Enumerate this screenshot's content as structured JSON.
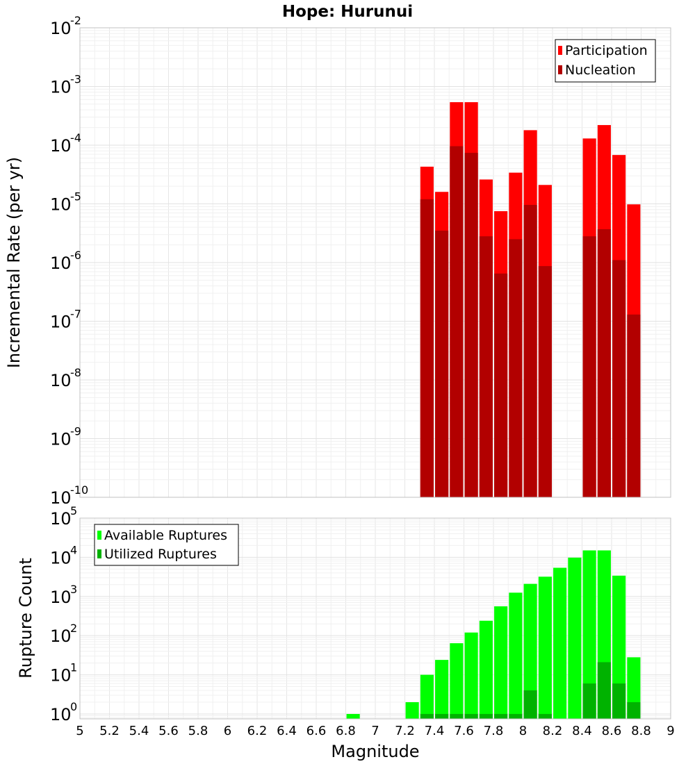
{
  "chart_data": [
    {
      "type": "bar",
      "title": "Hope: Hurunui",
      "ylabel": "Incremental Rate (per yr)",
      "xlabel": "",
      "xlim": [
        5,
        9
      ],
      "ylim": [
        1e-10,
        0.01
      ],
      "yscale": "log",
      "grid": true,
      "legend_position": "top-right",
      "x": [
        7.35,
        7.45,
        7.55,
        7.65,
        7.75,
        7.85,
        7.95,
        8.05,
        8.15,
        8.45,
        8.55,
        8.65,
        8.75
      ],
      "series": [
        {
          "name": "Participation",
          "color": "#ff0000",
          "values": [
            4.3e-05,
            1.6e-05,
            0.00054,
            0.00054,
            2.6e-05,
            7.5e-06,
            3.4e-05,
            0.00018,
            2.1e-05,
            0.00013,
            0.00022,
            6.8e-05,
            9.8e-06
          ]
        },
        {
          "name": "Nucleation",
          "color": "#b20000",
          "values": [
            1.2e-05,
            3.5e-06,
            9.6e-05,
            7.4e-05,
            2.8e-06,
            6.5e-07,
            2.5e-06,
            9.6e-06,
            8.7e-07,
            2.8e-06,
            3.7e-06,
            1.1e-06,
            1.3e-07
          ]
        }
      ],
      "y_ticks": [
        {
          "base": "10",
          "exp": "-2"
        },
        {
          "base": "10",
          "exp": "-3"
        },
        {
          "base": "10",
          "exp": "-4"
        },
        {
          "base": "10",
          "exp": "-5"
        },
        {
          "base": "10",
          "exp": "-6"
        },
        {
          "base": "10",
          "exp": "-7"
        },
        {
          "base": "10",
          "exp": "-8"
        },
        {
          "base": "10",
          "exp": "-9"
        },
        {
          "base": "10",
          "exp": "-10"
        }
      ]
    },
    {
      "type": "bar",
      "title": "",
      "ylabel": "Rupture Count",
      "xlabel": "Magnitude",
      "xlim": [
        5,
        9
      ],
      "ylim": [
        0.75,
        100000.0
      ],
      "yscale": "log",
      "grid": true,
      "legend_position": "top-left",
      "x_ticks": [
        "5",
        "5.2",
        "5.4",
        "5.6",
        "5.8",
        "6",
        "6.2",
        "6.4",
        "6.6",
        "6.8",
        "7",
        "7.2",
        "7.4",
        "7.6",
        "7.8",
        "8",
        "8.2",
        "8.4",
        "8.6",
        "8.8",
        "9"
      ],
      "y_ticks": [
        {
          "base": "10",
          "exp": "5"
        },
        {
          "base": "10",
          "exp": "4"
        },
        {
          "base": "10",
          "exp": "3"
        },
        {
          "base": "10",
          "exp": "2"
        },
        {
          "base": "10",
          "exp": "1"
        },
        {
          "base": "10",
          "exp": "0"
        }
      ],
      "series": [
        {
          "name": "Available Ruptures",
          "color": "#00ff00",
          "x": [
            6.85,
            7.25,
            7.35,
            7.45,
            7.55,
            7.65,
            7.75,
            7.85,
            7.95,
            8.05,
            8.15,
            8.25,
            8.35,
            8.45,
            8.55,
            8.65,
            8.75
          ],
          "values": [
            1,
            2,
            10,
            24,
            64,
            120,
            240,
            560,
            1250,
            2100,
            3200,
            5400,
            9800,
            15000,
            15000,
            3400,
            28
          ]
        },
        {
          "name": "Utilized Ruptures",
          "color": "#00b200",
          "x": [
            7.35,
            7.45,
            7.55,
            7.65,
            7.75,
            7.85,
            7.95,
            8.05,
            8.15,
            8.45,
            8.55,
            8.65,
            8.75
          ],
          "values": [
            1,
            1,
            1,
            1,
            1,
            1,
            1,
            4,
            1,
            6,
            21,
            6,
            2
          ]
        }
      ]
    }
  ]
}
